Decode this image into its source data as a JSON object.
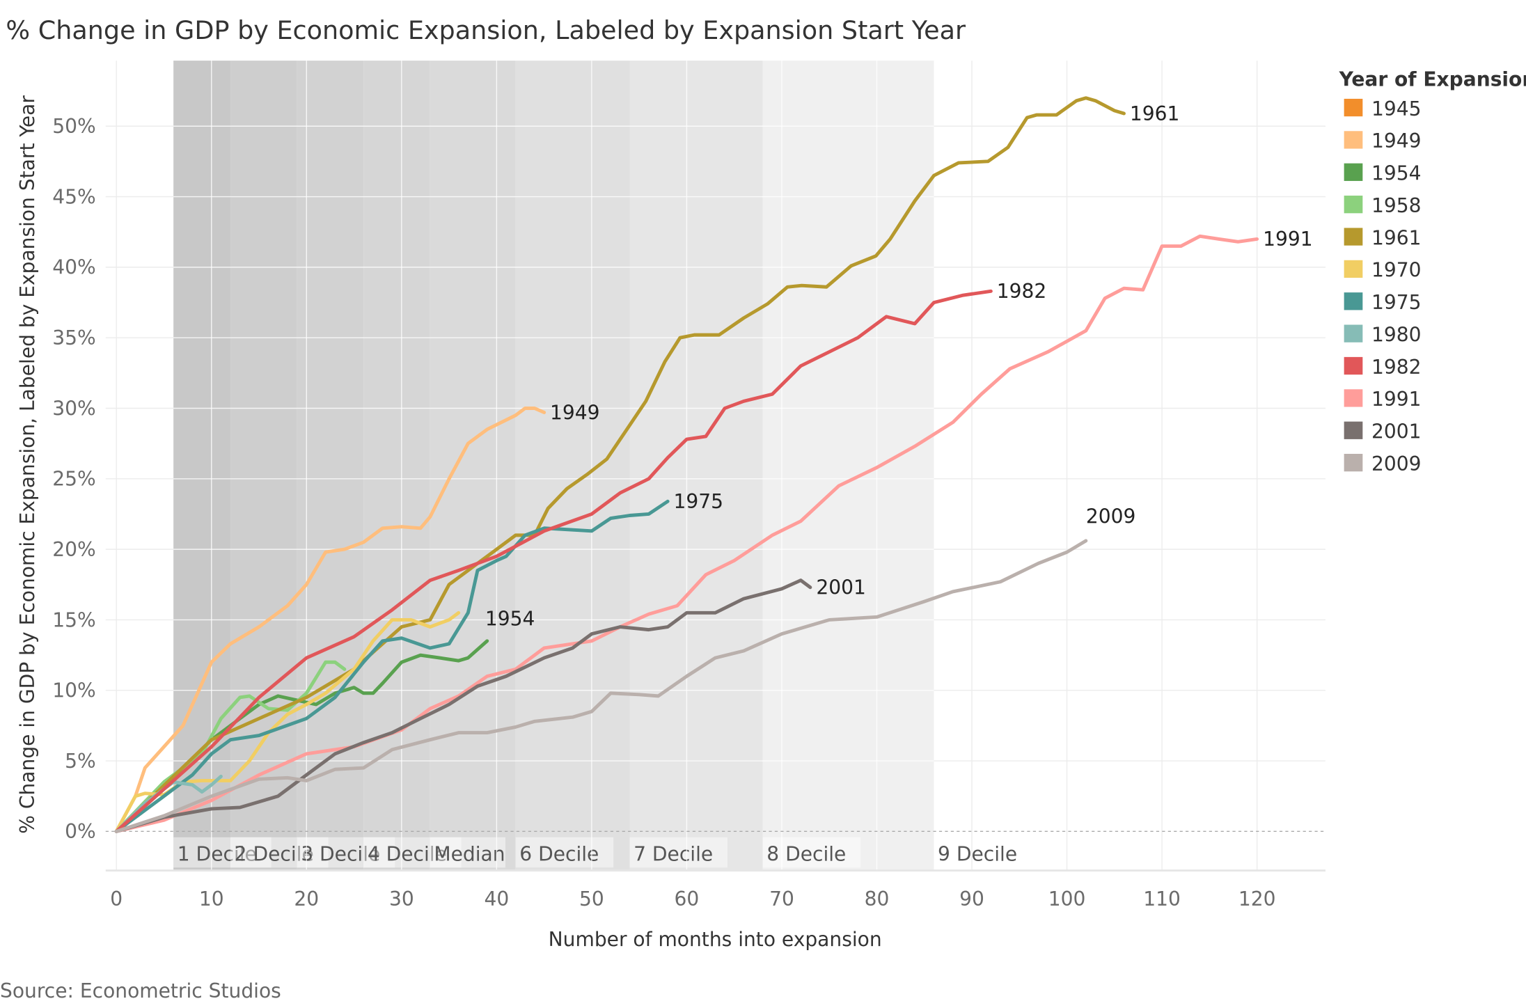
{
  "chart_data": {
    "type": "line",
    "title": "% Change in GDP by Economic Expansion, Labeled by Expansion Start Year",
    "xlabel": "Number of months into expansion",
    "ylabel": "% Change in GDP by Economic Expansion, Labeled by Expansion Start Year",
    "xlim": [
      -1,
      126
    ],
    "ylim": [
      -2.8,
      54.5
    ],
    "x_ticks": [
      "0",
      "10",
      "20",
      "30",
      "40",
      "50",
      "60",
      "70",
      "80",
      "90",
      "100",
      "110",
      "120"
    ],
    "x_tick_values": [
      0,
      10,
      20,
      30,
      40,
      50,
      60,
      70,
      80,
      90,
      100,
      110,
      120
    ],
    "y_ticks": [
      "0%",
      "5%",
      "10%",
      "15%",
      "20%",
      "25%",
      "30%",
      "35%",
      "40%",
      "45%",
      "50%"
    ],
    "y_tick_values": [
      0,
      5,
      10,
      15,
      20,
      25,
      30,
      35,
      40,
      45,
      50
    ],
    "grid": true,
    "legend": {
      "title": "Year of Expansion",
      "placement": "right"
    },
    "source": "Source: Econometric Studios",
    "reference_bands": [
      {
        "label": "1 Decile",
        "start": 6,
        "end": 12,
        "color": "#c8c8c8"
      },
      {
        "label": "2 Decile",
        "start": 12,
        "end": 19,
        "color": "#cecece"
      },
      {
        "label": "3 Decile",
        "start": 19,
        "end": 26,
        "color": "#d2d2d2"
      },
      {
        "label": "4 Decile",
        "start": 26,
        "end": 33,
        "color": "#d6d6d6"
      },
      {
        "label": "Median",
        "start": 33,
        "end": 42,
        "color": "#dadada"
      },
      {
        "label": "6 Decile",
        "start": 42,
        "end": 54,
        "color": "#e0e0e0"
      },
      {
        "label": "7 Decile",
        "start": 54,
        "end": 68,
        "color": "#e6e6e6"
      },
      {
        "label": "8 Decile",
        "start": 68,
        "end": 86,
        "color": "#f0f0f0"
      },
      {
        "label": "9 Decile",
        "start": 86,
        "end": 86,
        "color": "#f0f0f0"
      }
    ],
    "series": [
      {
        "name": "1945",
        "color": "#f28e2b",
        "x": [],
        "y": []
      },
      {
        "name": "1949",
        "color": "#ffbe7d",
        "x": [
          0,
          2,
          3,
          5,
          7,
          9,
          10,
          12,
          15,
          18,
          20,
          22,
          24,
          26,
          28,
          30,
          32,
          33,
          35,
          37,
          39,
          42,
          43,
          44,
          45
        ],
        "y": [
          0,
          2.5,
          4.5,
          6,
          7.5,
          10.5,
          12,
          13.3,
          14.5,
          16,
          17.5,
          19.8,
          20,
          20.5,
          21.5,
          21.6,
          21.5,
          22.3,
          25,
          27.5,
          28.5,
          29.5,
          30,
          30,
          29.7
        ]
      },
      {
        "name": "1954",
        "color": "#59a14f",
        "x": [
          0,
          5,
          10,
          13,
          15,
          17,
          19,
          21,
          23,
          25,
          26,
          27,
          28,
          30,
          32,
          34,
          36,
          37,
          39
        ],
        "y": [
          0,
          3,
          6.5,
          8,
          9,
          9.6,
          9.3,
          9,
          9.8,
          10.2,
          9.8,
          9.8,
          10.5,
          12,
          12.5,
          12.3,
          12.1,
          12.3,
          13.5
        ]
      },
      {
        "name": "1958",
        "color": "#8cd17d",
        "x": [
          0,
          5,
          9,
          11,
          13,
          14,
          16,
          18,
          20,
          22,
          23,
          24
        ],
        "y": [
          0,
          3.5,
          5.5,
          8,
          9.5,
          9.6,
          8.7,
          8.6,
          9.8,
          12,
          12,
          11.5
        ]
      },
      {
        "name": "1961",
        "color": "#b6992d",
        "x": [
          0,
          10,
          20,
          25,
          30,
          33,
          35,
          38,
          40,
          42,
          44,
          45.4,
          47.4,
          49.5,
          51.6,
          53.6,
          55.7,
          57.7,
          59.3,
          60.8,
          63.4,
          66,
          68.5,
          70.6,
          72.1,
          74.7,
          77.3,
          79.9,
          81.4,
          84,
          86,
          88.6,
          91.7,
          93.8,
          95.8,
          96.8,
          98.9,
          101,
          102,
          103,
          105,
          106
        ],
        "y": [
          0,
          6.5,
          9.5,
          11.5,
          14.5,
          15,
          17.5,
          19,
          20,
          21,
          21,
          22.9,
          24.3,
          25.3,
          26.4,
          28.4,
          30.5,
          33.3,
          35,
          35.2,
          35.2,
          36.4,
          37.4,
          38.6,
          38.7,
          38.6,
          40.1,
          40.8,
          42,
          44.7,
          46.5,
          47.4,
          47.5,
          48.5,
          50.6,
          50.8,
          50.8,
          51.8,
          52,
          51.8,
          51.1,
          50.9
        ]
      },
      {
        "name": "1970",
        "color": "#f1ce63",
        "x": [
          0,
          2,
          3,
          5,
          7,
          9,
          12,
          14,
          16,
          18,
          20,
          22,
          25,
          27,
          29,
          31,
          33,
          35,
          36
        ],
        "y": [
          0,
          2.5,
          2.7,
          2.6,
          3.5,
          3.6,
          3.6,
          5,
          7,
          8.3,
          9,
          9.8,
          11.5,
          13.5,
          15,
          15,
          14.5,
          15,
          15.5
        ]
      },
      {
        "name": "1975",
        "color": "#499894",
        "x": [
          0,
          5,
          8,
          10,
          12,
          15,
          20,
          23,
          26,
          28,
          30,
          33,
          35,
          37,
          38,
          40,
          41,
          43,
          45,
          50,
          52,
          54,
          56,
          58
        ],
        "y": [
          0,
          2.5,
          4,
          5.5,
          6.5,
          6.8,
          8,
          9.5,
          12,
          13.5,
          13.7,
          13,
          13.3,
          15.5,
          18.5,
          19.2,
          19.5,
          21,
          21.5,
          21.3,
          22.2,
          22.4,
          22.5,
          23.4
        ]
      },
      {
        "name": "1980",
        "color": "#86bcb6",
        "x": [
          0,
          3,
          6,
          8,
          9,
          10,
          11
        ],
        "y": [
          0,
          2,
          3.5,
          3.3,
          2.8,
          3.3,
          3.9
        ]
      },
      {
        "name": "1982",
        "color": "#e15759",
        "x": [
          0,
          10,
          15,
          20,
          25,
          29,
          33,
          36,
          40,
          45,
          50,
          53,
          56,
          58,
          60,
          62,
          64,
          66,
          69,
          72,
          75,
          78,
          81,
          84,
          86,
          89,
          92
        ],
        "y": [
          0,
          6,
          9.5,
          12.3,
          13.8,
          15.7,
          17.8,
          18.5,
          19.5,
          21.3,
          22.5,
          24,
          25,
          26.5,
          27.8,
          28,
          30,
          30.5,
          31,
          33,
          34,
          35,
          36.5,
          36,
          37.5,
          38,
          38.3
        ]
      },
      {
        "name": "1991",
        "color": "#ff9d9a",
        "x": [
          0,
          5,
          10,
          15,
          20,
          25,
          30,
          33,
          36,
          39,
          42,
          45,
          50,
          53,
          56,
          59,
          62,
          65,
          69,
          72,
          76,
          80,
          84,
          88,
          91,
          94,
          98,
          102,
          104,
          106,
          108,
          110,
          112,
          114,
          116,
          118,
          120
        ],
        "y": [
          0,
          0.8,
          2.2,
          4,
          5.5,
          6,
          7.2,
          8.7,
          9.6,
          11,
          11.5,
          13,
          13.5,
          14.5,
          15.4,
          16,
          18.2,
          19.2,
          21,
          22,
          24.5,
          25.8,
          27.3,
          29,
          31,
          32.8,
          34,
          35.5,
          37.8,
          38.5,
          38.4,
          41.5,
          41.5,
          42.2,
          42,
          41.8,
          42
        ]
      },
      {
        "name": "2001",
        "color": "#79706e",
        "x": [
          0,
          5,
          10,
          13,
          17,
          20,
          23,
          26,
          29,
          32,
          35,
          38,
          41,
          45,
          48,
          50,
          53,
          56,
          58,
          60,
          63,
          66,
          70,
          72,
          73
        ],
        "y": [
          0,
          1,
          1.6,
          1.7,
          2.5,
          4,
          5.5,
          6.3,
          7,
          8,
          9,
          10.3,
          11,
          12.3,
          13,
          14,
          14.5,
          14.3,
          14.5,
          15.5,
          15.5,
          16.5,
          17.2,
          17.8,
          17.3
        ]
      },
      {
        "name": "2009",
        "color": "#bab0ac",
        "x": [
          0,
          5,
          10,
          15,
          18,
          20,
          23,
          26,
          29,
          33,
          36,
          39,
          42,
          44,
          48,
          50,
          52,
          55,
          57,
          60,
          63,
          66,
          70,
          75,
          80,
          85,
          88,
          93,
          97,
          100,
          102
        ],
        "y": [
          0,
          1.1,
          2.5,
          3.7,
          3.8,
          3.6,
          4.4,
          4.5,
          5.8,
          6.5,
          7,
          7,
          7.4,
          7.8,
          8.1,
          8.5,
          9.8,
          9.7,
          9.6,
          11,
          12.3,
          12.8,
          14,
          15,
          15.2,
          16.3,
          17,
          17.7,
          19,
          19.8,
          20.6
        ]
      }
    ],
    "end_labels": [
      "1949",
      "1954",
      "1961",
      "1975",
      "1982",
      "1991",
      "2001",
      "2009"
    ]
  }
}
